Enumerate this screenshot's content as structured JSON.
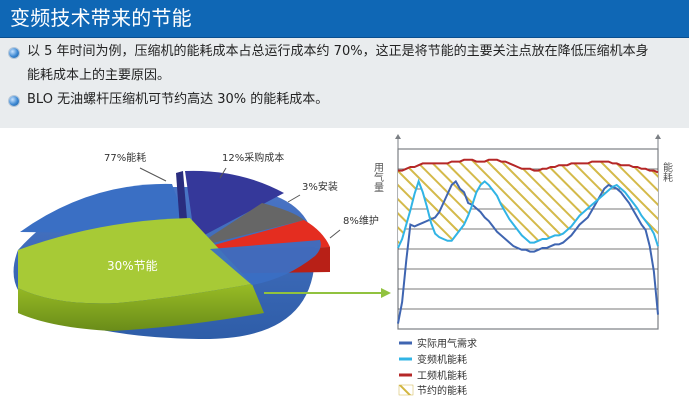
{
  "header": {
    "title": "变频技术带来的节能"
  },
  "bullets": [
    "以 5 年时间为例，压缩机的能耗成本占总运行成本约 70%，这正是将节能的主要关注点放在降低压缩机本身",
    "能耗成本上的主要原因。",
    "BLO 无油螺杆压缩机可节约高达 30% 的能耗成本。"
  ],
  "pie": {
    "slices": [
      {
        "label": "77%能耗",
        "color": "#3a6fc4"
      },
      {
        "label": "12%采购成本",
        "color": "#35389a"
      },
      {
        "label": "3%安装",
        "color": "#666666"
      },
      {
        "label": "8%维护",
        "color": "#e42d20"
      },
      {
        "label": "30%节能",
        "color": "#a7ca36"
      }
    ]
  },
  "right_chart": {
    "y_left_label": "用气量",
    "y_right_label": "能耗",
    "legend": [
      {
        "label": "实际用气需求",
        "color": "#3f65b1"
      },
      {
        "label": "变频机能耗",
        "color": "#31b4e5"
      },
      {
        "label": "工频机能耗",
        "color": "#b52727"
      },
      {
        "label": "节约的能耗",
        "color": "#c8a938"
      }
    ]
  },
  "chart_data": {
    "type": "line",
    "title": "",
    "xlabel": "",
    "ylabel": "用气量",
    "y2label": "能耗",
    "x": [
      0,
      1,
      2,
      3,
      4,
      5,
      6,
      7,
      8,
      9,
      10,
      11,
      12,
      13,
      14,
      15,
      16,
      17,
      18,
      19,
      20,
      21,
      22,
      23,
      24,
      25,
      26,
      27,
      28,
      29,
      30,
      31,
      32,
      33,
      34,
      35,
      36,
      37,
      38,
      39,
      40,
      41,
      42,
      43,
      44,
      45,
      46,
      47,
      48,
      49,
      50,
      51,
      52,
      53,
      54,
      55,
      56,
      57,
      58,
      59,
      60,
      61,
      62,
      63
    ],
    "series": [
      {
        "name": "实际用气需求",
        "values": [
          3,
          15,
          38,
          58,
          57,
          58,
          59,
          60,
          61,
          62,
          65,
          70,
          75,
          80,
          82,
          78,
          76,
          70,
          69,
          67,
          65,
          62,
          60,
          57,
          54,
          52,
          50,
          48,
          46,
          45,
          44,
          44,
          43,
          43,
          44,
          45,
          45,
          46,
          47,
          47,
          48,
          50,
          52,
          55,
          58,
          60,
          62,
          66,
          70,
          74,
          78,
          80,
          79,
          78,
          76,
          73,
          70,
          66,
          62,
          58,
          55,
          46,
          32,
          8
        ]
      },
      {
        "name": "变频机能耗",
        "values": [
          45,
          50,
          58,
          66,
          75,
          82,
          76,
          68,
          59,
          53,
          51,
          50,
          49,
          49,
          52,
          55,
          58,
          63,
          69,
          76,
          80,
          82,
          80,
          77,
          74,
          69,
          65,
          61,
          58,
          55,
          52,
          50,
          48,
          48,
          49,
          50,
          50,
          51,
          52,
          52,
          53,
          55,
          57,
          60,
          63,
          65,
          67,
          69,
          71,
          73,
          75,
          77,
          79,
          80,
          78,
          76,
          73,
          70,
          67,
          63,
          60,
          57,
          53,
          46
        ]
      },
      {
        "name": "工频机能耗",
        "values": [
          88,
          88,
          89,
          90,
          90,
          91,
          92,
          92,
          92,
          92,
          92,
          92,
          92,
          93,
          93,
          93,
          94,
          94,
          94,
          93,
          93,
          93,
          94,
          94,
          94,
          93,
          93,
          92,
          91,
          90,
          89,
          89,
          89,
          88,
          88,
          89,
          89,
          90,
          90,
          91,
          91,
          91,
          92,
          92,
          92,
          92,
          92,
          93,
          93,
          93,
          93,
          93,
          92,
          92,
          91,
          91,
          91,
          90,
          90,
          89,
          89,
          88,
          88,
          87
        ]
      }
    ],
    "ylim": [
      0,
      100
    ],
    "grid": true,
    "legend": "bottom-left"
  }
}
